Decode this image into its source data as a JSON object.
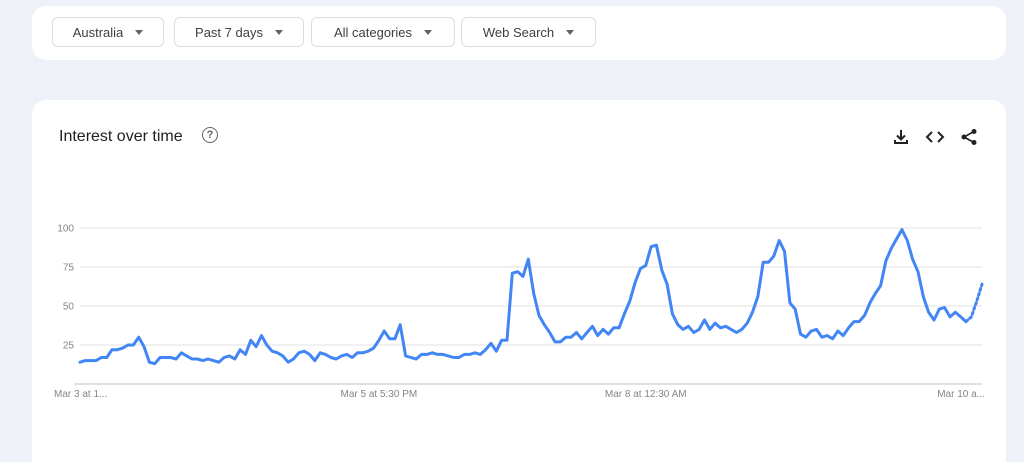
{
  "filters": {
    "region": "Australia",
    "time": "Past 7 days",
    "category": "All categories",
    "property": "Web Search"
  },
  "chart": {
    "title": "Interest over time",
    "help_symbol": "?"
  },
  "icons": {
    "help": "help-circle-icon",
    "download": "download-icon",
    "embed": "embed-code-icon",
    "share": "share-icon"
  },
  "colors": {
    "line": "#4285f4",
    "grid": "#e0e0e0"
  },
  "chart_data": {
    "type": "line",
    "title": "Interest over time",
    "xlabel": "",
    "ylabel": "",
    "ylim": [
      0,
      100
    ],
    "yticks": [
      "100",
      "75",
      "50",
      "25"
    ],
    "ytick_values": [
      100,
      75,
      50,
      25
    ],
    "xticks": [
      "Mar 3 at 1...",
      "Mar 5 at 5:30 PM",
      "Mar 8 at 12:30 AM",
      "Mar 10 a..."
    ],
    "xtick_index": [
      0,
      56,
      106,
      160
    ],
    "grid": true,
    "partial_last_points": 3,
    "values": [
      14,
      15,
      15,
      15,
      17,
      17,
      22,
      22,
      23,
      25,
      25,
      30,
      24,
      14,
      13,
      17,
      17,
      17,
      16,
      20,
      18,
      16,
      16,
      15,
      16,
      15,
      14,
      17,
      18,
      16,
      22,
      19,
      28,
      24,
      31,
      25,
      21,
      20,
      18,
      14,
      16,
      20,
      21,
      19,
      15,
      20,
      19,
      17,
      16,
      18,
      19,
      17,
      20,
      20,
      21,
      23,
      28,
      34,
      29,
      29,
      38,
      18,
      17,
      16,
      19,
      19,
      20,
      19,
      19,
      18,
      17,
      17,
      19,
      19,
      20,
      19,
      22,
      26,
      21,
      28,
      28,
      71,
      72,
      69,
      80,
      58,
      44,
      38,
      33,
      27,
      27,
      30,
      30,
      33,
      29,
      33,
      37,
      31,
      35,
      32,
      36,
      36,
      45,
      53,
      65,
      74,
      76,
      88,
      89,
      73,
      64,
      45,
      38,
      35,
      37,
      33,
      35,
      41,
      35,
      39,
      36,
      37,
      35,
      33,
      35,
      39,
      46,
      56,
      78,
      78,
      82,
      92,
      85,
      52,
      48,
      32,
      30,
      34,
      35,
      30,
      31,
      29,
      34,
      31,
      36,
      40,
      40,
      44,
      52,
      58,
      63,
      79,
      87,
      93,
      99,
      92,
      80,
      72,
      56,
      46,
      41,
      48,
      49,
      43,
      46,
      43,
      40,
      43,
      53,
      64
    ]
  }
}
